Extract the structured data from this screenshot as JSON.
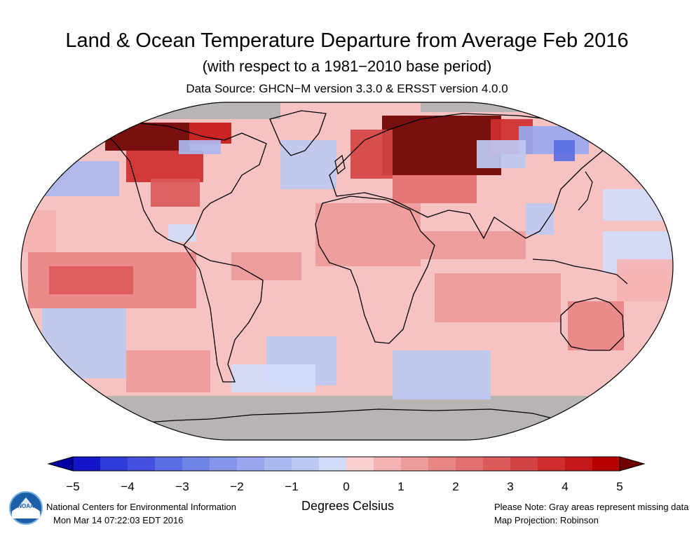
{
  "title": "Land & Ocean Temperature Departure from Average Feb 2016",
  "subtitle": "(with respect to a 1981−2010 base period)",
  "source": "Data Source: GHCN−M version 3.3.0 & ERSST version 4.0.0",
  "colorbar": {
    "tick_labels": [
      "−5",
      "−4",
      "−3",
      "−2",
      "−1",
      "0",
      "1",
      "2",
      "3",
      "4",
      "5"
    ],
    "unit_label": "Degrees Celsius",
    "colors": [
      "#1414c8",
      "#2d3cd6",
      "#4650de",
      "#5a6ee3",
      "#6f84e6",
      "#8595ea",
      "#99a8ee",
      "#aab8f0",
      "#bec9f3",
      "#d2dbf8",
      "#fbd0d0",
      "#f5b3b3",
      "#ee9b9b",
      "#e88686",
      "#e27070",
      "#dc5a5a",
      "#d54444",
      "#ce2e2e",
      "#c51818",
      "#b80000"
    ],
    "under_color": "#0000a0",
    "over_color": "#6e0000"
  },
  "map": {
    "projection_note": "Map Projection: Robinson",
    "missing_color": "#b3b3b3",
    "ocean_base_color": "#f7c2c2",
    "land_outline_color": "#000000"
  },
  "footer": {
    "org": "National Centers for Environmental Information",
    "timestamp": "Mon Mar 14 07:22:03 EDT 2016",
    "note": "Please Note: Gray areas represent missing data",
    "projection": "Map Projection: Robinson",
    "logo_text": "NOAA"
  }
}
